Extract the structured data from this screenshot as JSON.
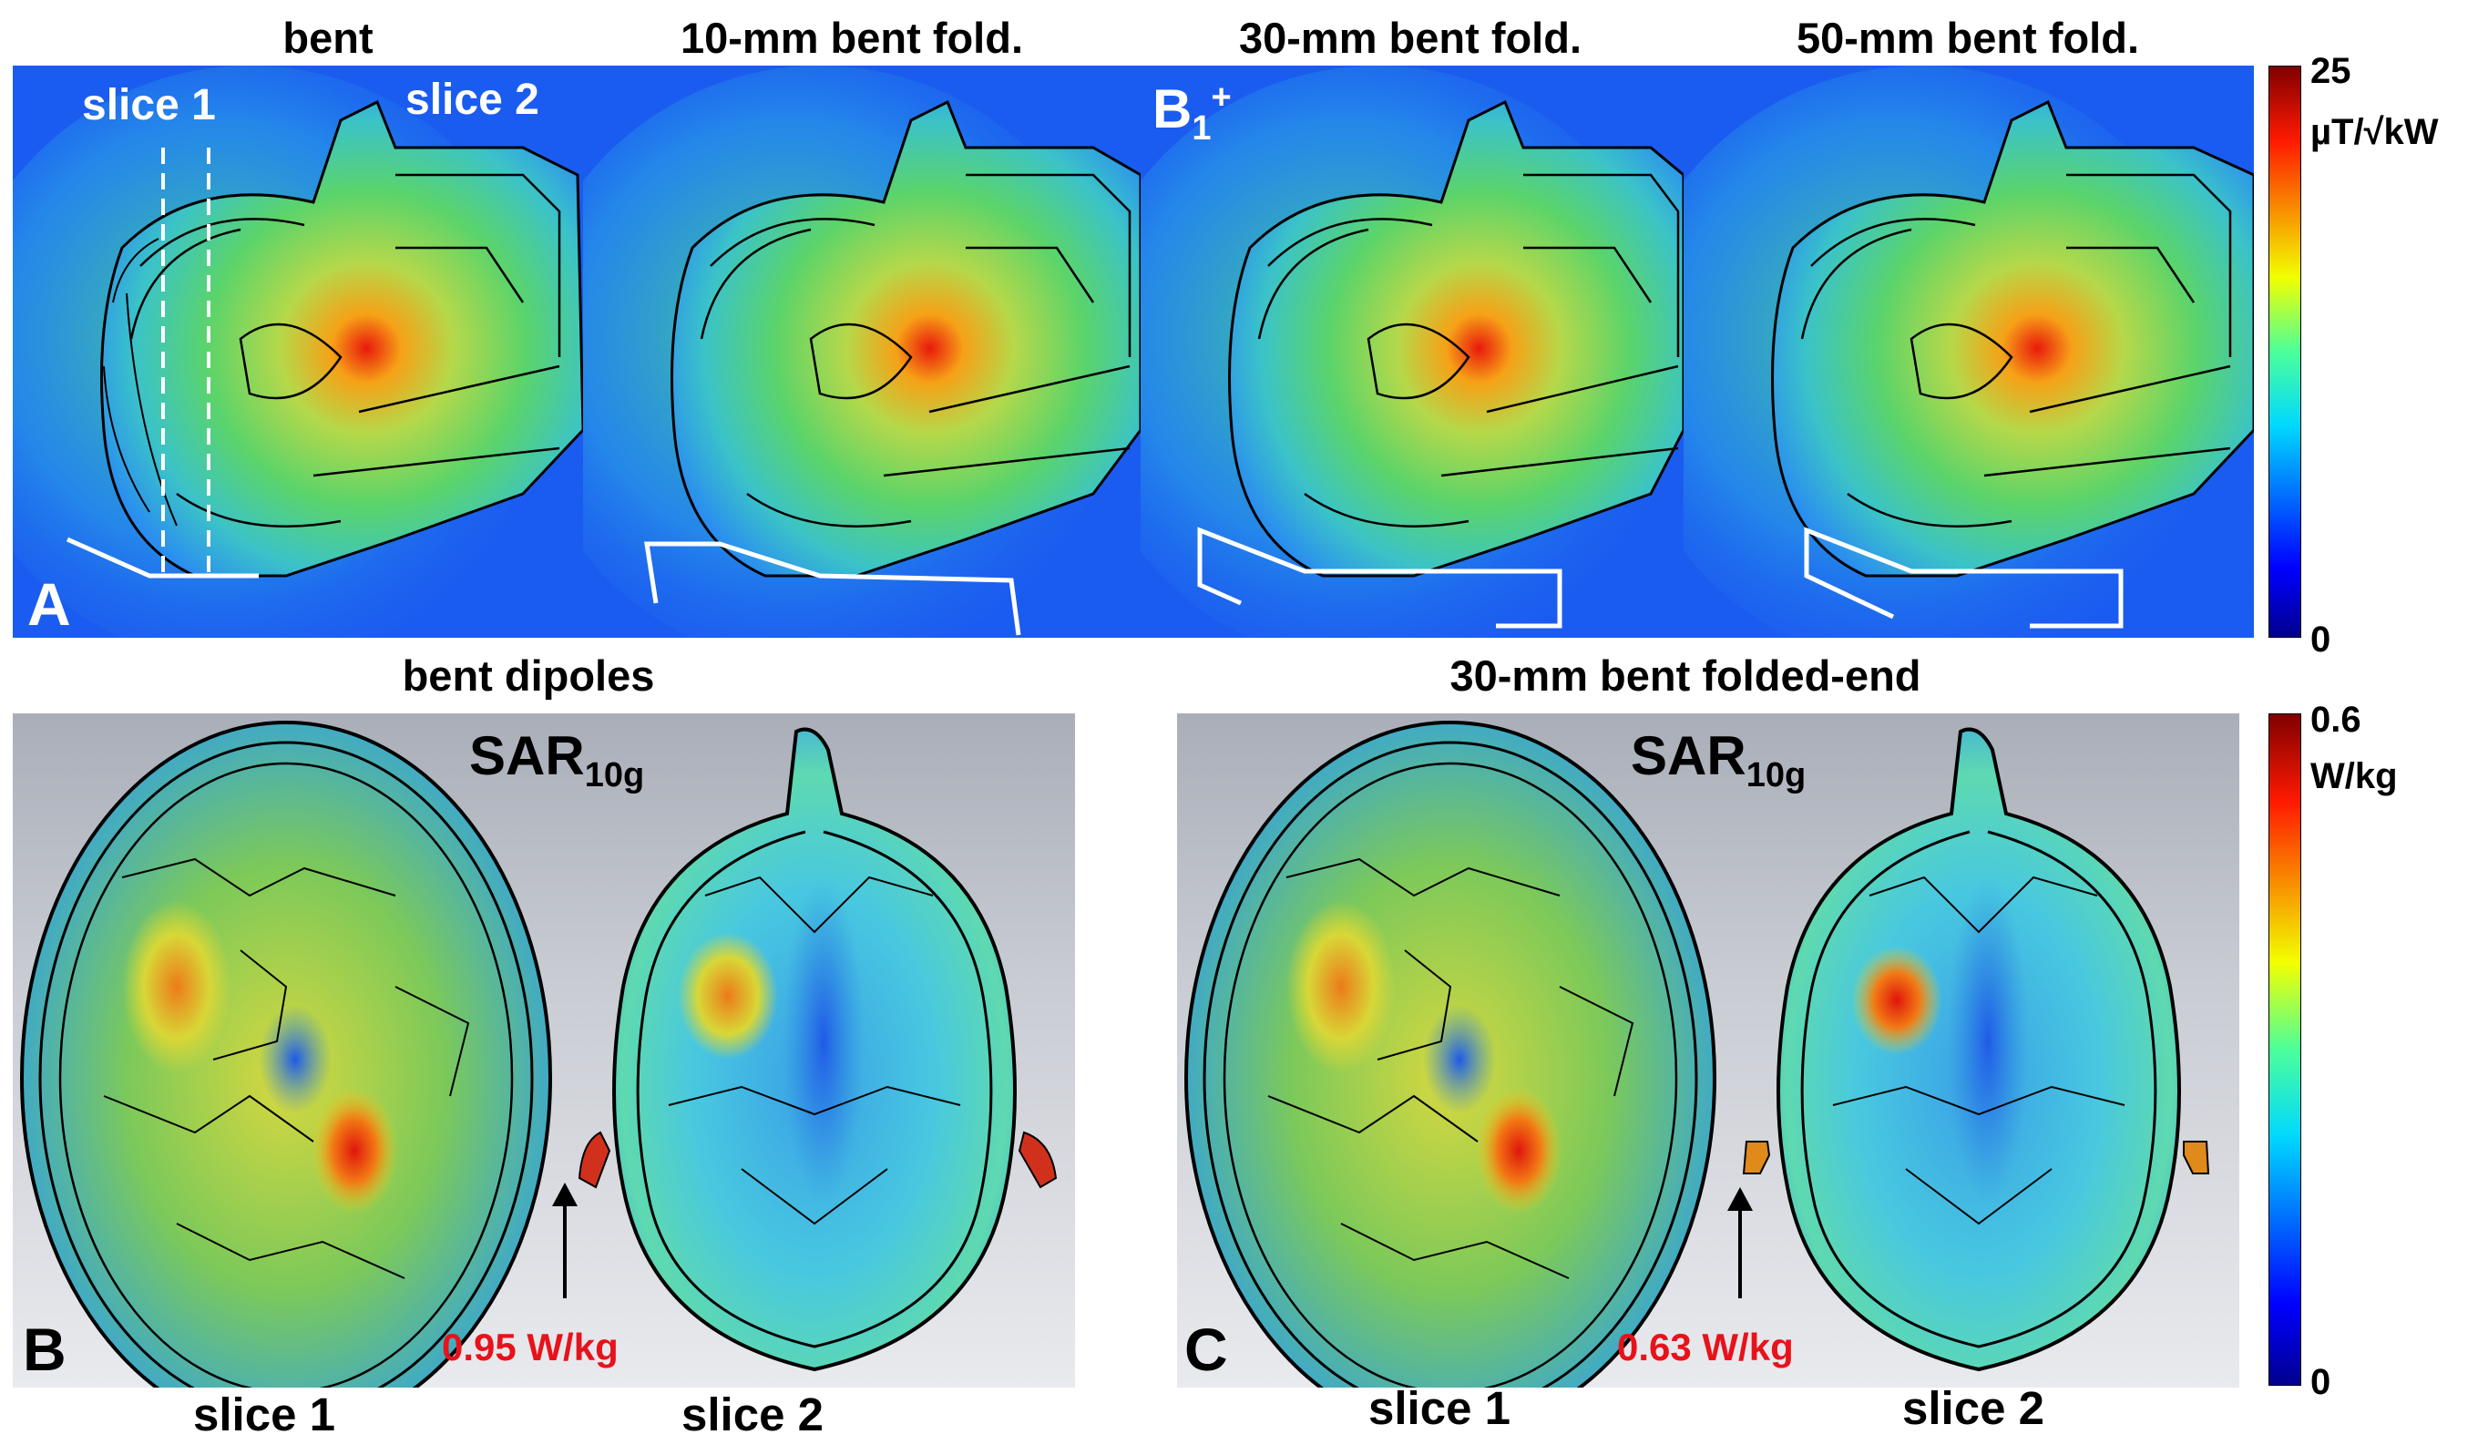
{
  "figure_a": {
    "titles": [
      "bent",
      "10-mm bent fold.",
      "30-mm bent fold.",
      "50-mm bent fold."
    ],
    "slice_labels": [
      "slice 1",
      "slice 2"
    ],
    "field_label_base": "B",
    "field_label_sub": "1",
    "field_label_sup": "+",
    "panel_letter": "A",
    "colorbar": {
      "max": "25",
      "unit": "µT/√kW",
      "min": "0"
    }
  },
  "figure_b": {
    "title": "bent dipoles",
    "sar_base": "SAR",
    "sar_sub": "10g",
    "panel_letter": "B",
    "peak_value": "0.95 W/kg",
    "slice1": "slice 1",
    "slice2": "slice 2"
  },
  "figure_c": {
    "title": "30-mm bent folded-end",
    "sar_base": "SAR",
    "sar_sub": "10g",
    "panel_letter": "C",
    "peak_value": "0.63 W/kg",
    "slice1": "slice 1",
    "slice2": "slice 2"
  },
  "sar_colorbar": {
    "max": "0.6",
    "unit": "W/kg",
    "min": "0"
  },
  "colors": {
    "jet_low": "#00008f",
    "jet_mid": "#00d8ff",
    "jet_high": "#800000",
    "peak_text": "#e8121b"
  }
}
